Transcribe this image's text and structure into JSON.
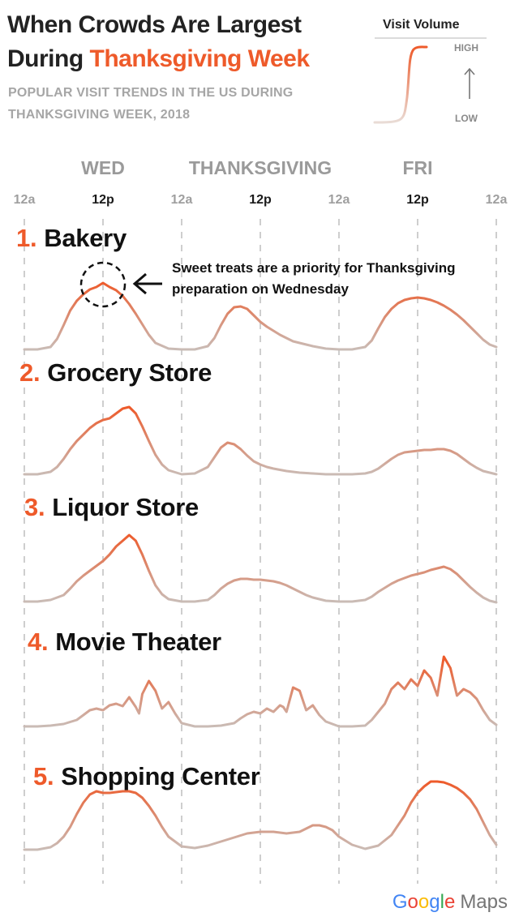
{
  "header": {
    "title_line1": "When Crowds Are Largest",
    "title_line2_prefix": "During ",
    "title_line2_highlight": "Thanksgiving Week",
    "subtitle": "POPULAR VISIT TRENDS IN THE US DURING THANKSGIVING WEEK, 2018"
  },
  "legend": {
    "title": "Visit Volume",
    "high": "HIGH",
    "low": "LOW"
  },
  "annotation": {
    "text": "Sweet treats are a priority for Thanksgiving preparation on Wednesday"
  },
  "footer": {
    "google": [
      "G",
      "o",
      "o",
      "g",
      "l",
      "e"
    ],
    "google_colors": [
      "#4285F4",
      "#EA4335",
      "#FBBC05",
      "#4285F4",
      "#34A853",
      "#EA4335"
    ],
    "maps": "Maps"
  },
  "colors": {
    "accent": "#ee5a2a",
    "low": "#c8c0bc",
    "grid": "#bdbdbd"
  },
  "chart_data": {
    "type": "line",
    "title": "When Crowds Are Largest During Thanksgiving Week",
    "subtitle": "POPULAR VISIT TRENDS IN THE US DURING THANKSGIVING WEEK, 2018",
    "days": [
      "WED",
      "THANKSGIVING",
      "FRI"
    ],
    "tick_labels": [
      "12a",
      "12p",
      "12a",
      "12p",
      "12a",
      "12p",
      "12a"
    ],
    "x_unit_hours": [
      0,
      12,
      24,
      36,
      48,
      60,
      72
    ],
    "ylim": [
      0,
      1
    ],
    "grid": "vertical dashed lines at ticks",
    "legend": "top-right",
    "panels": [
      {
        "rank": "1.",
        "name": "Bakery",
        "highlight_hour": 12,
        "x": [
          0,
          2,
          4,
          5,
          6,
          7,
          8,
          9,
          10,
          11,
          12,
          13,
          14,
          15,
          16,
          17,
          18,
          19,
          20,
          22,
          24,
          26,
          28,
          29,
          30,
          31,
          32,
          33,
          34,
          35,
          36,
          37,
          38,
          39,
          40,
          41,
          42,
          43,
          44,
          46,
          48,
          50,
          52,
          53,
          54,
          55,
          56,
          57,
          58,
          59,
          60,
          61,
          62,
          63,
          64,
          65,
          66,
          67,
          68,
          69,
          70,
          71,
          72
        ],
        "y": [
          0.02,
          0.02,
          0.05,
          0.15,
          0.32,
          0.5,
          0.62,
          0.7,
          0.76,
          0.79,
          0.84,
          0.79,
          0.75,
          0.68,
          0.58,
          0.46,
          0.33,
          0.2,
          0.1,
          0.03,
          0.02,
          0.02,
          0.06,
          0.16,
          0.32,
          0.46,
          0.54,
          0.55,
          0.52,
          0.44,
          0.36,
          0.3,
          0.25,
          0.2,
          0.16,
          0.12,
          0.1,
          0.08,
          0.06,
          0.03,
          0.02,
          0.02,
          0.05,
          0.13,
          0.28,
          0.42,
          0.52,
          0.59,
          0.63,
          0.65,
          0.66,
          0.65,
          0.63,
          0.6,
          0.56,
          0.51,
          0.45,
          0.38,
          0.3,
          0.22,
          0.14,
          0.08,
          0.05
        ]
      },
      {
        "rank": "2.",
        "name": "Grocery Store",
        "x": [
          0,
          2,
          4,
          5,
          6,
          7,
          8,
          9,
          10,
          11,
          12,
          13,
          14,
          15,
          16,
          17,
          18,
          19,
          20,
          21,
          22,
          24,
          26,
          28,
          29,
          30,
          31,
          32,
          33,
          34,
          35,
          36,
          37,
          38,
          40,
          42,
          44,
          46,
          48,
          50,
          52,
          53,
          54,
          55,
          56,
          57,
          58,
          59,
          60,
          61,
          62,
          63,
          64,
          65,
          66,
          67,
          68,
          69,
          70,
          71,
          72
        ],
        "y": [
          0.03,
          0.03,
          0.06,
          0.12,
          0.22,
          0.34,
          0.44,
          0.52,
          0.6,
          0.66,
          0.7,
          0.72,
          0.78,
          0.84,
          0.86,
          0.78,
          0.62,
          0.44,
          0.27,
          0.15,
          0.08,
          0.03,
          0.04,
          0.12,
          0.24,
          0.36,
          0.42,
          0.4,
          0.34,
          0.26,
          0.19,
          0.15,
          0.12,
          0.1,
          0.07,
          0.05,
          0.04,
          0.03,
          0.03,
          0.03,
          0.04,
          0.06,
          0.1,
          0.16,
          0.22,
          0.27,
          0.3,
          0.31,
          0.32,
          0.33,
          0.33,
          0.34,
          0.34,
          0.32,
          0.28,
          0.22,
          0.16,
          0.11,
          0.07,
          0.05,
          0.03
        ]
      },
      {
        "rank": "3.",
        "name": "Liquor Store",
        "x": [
          0,
          2,
          4,
          6,
          7,
          8,
          9,
          10,
          11,
          12,
          13,
          14,
          15,
          16,
          17,
          18,
          19,
          20,
          21,
          22,
          24,
          26,
          28,
          29,
          30,
          31,
          32,
          33,
          34,
          35,
          36,
          37,
          38,
          39,
          40,
          41,
          42,
          43,
          44,
          46,
          48,
          50,
          52,
          53,
          54,
          55,
          56,
          57,
          58,
          59,
          60,
          61,
          62,
          63,
          64,
          65,
          66,
          67,
          68,
          69,
          70,
          71,
          72
        ],
        "y": [
          0.02,
          0.02,
          0.04,
          0.1,
          0.18,
          0.27,
          0.34,
          0.4,
          0.46,
          0.52,
          0.6,
          0.7,
          0.77,
          0.84,
          0.77,
          0.6,
          0.4,
          0.22,
          0.11,
          0.05,
          0.02,
          0.02,
          0.04,
          0.1,
          0.18,
          0.24,
          0.28,
          0.3,
          0.3,
          0.29,
          0.29,
          0.28,
          0.27,
          0.25,
          0.22,
          0.18,
          0.14,
          0.1,
          0.07,
          0.03,
          0.02,
          0.02,
          0.04,
          0.08,
          0.14,
          0.19,
          0.24,
          0.28,
          0.31,
          0.34,
          0.36,
          0.38,
          0.41,
          0.43,
          0.45,
          0.42,
          0.36,
          0.28,
          0.2,
          0.13,
          0.07,
          0.03,
          0.01
        ]
      },
      {
        "rank": "4.",
        "name": "Movie Theater",
        "x": [
          0,
          2,
          4,
          6,
          8,
          9,
          10,
          11,
          12,
          13,
          14,
          15,
          16,
          17,
          17.5,
          18,
          19,
          20,
          21,
          22,
          23,
          24,
          26,
          28,
          30,
          32,
          33,
          34,
          35,
          36,
          37,
          38,
          39,
          39.5,
          40,
          41,
          42,
          43,
          44,
          45,
          46,
          48,
          50,
          52,
          53,
          54,
          55,
          56,
          57,
          58,
          59,
          60,
          61,
          62,
          63,
          64,
          65,
          66,
          67,
          68,
          69,
          70,
          71,
          72
        ],
        "y": [
          0.02,
          0.02,
          0.03,
          0.05,
          0.1,
          0.16,
          0.22,
          0.24,
          0.22,
          0.28,
          0.3,
          0.27,
          0.38,
          0.26,
          0.18,
          0.42,
          0.58,
          0.46,
          0.24,
          0.32,
          0.18,
          0.06,
          0.02,
          0.02,
          0.03,
          0.06,
          0.12,
          0.17,
          0.2,
          0.18,
          0.24,
          0.2,
          0.28,
          0.26,
          0.2,
          0.5,
          0.46,
          0.22,
          0.28,
          0.16,
          0.08,
          0.02,
          0.02,
          0.03,
          0.1,
          0.2,
          0.3,
          0.48,
          0.56,
          0.48,
          0.6,
          0.52,
          0.71,
          0.62,
          0.4,
          0.88,
          0.74,
          0.4,
          0.48,
          0.44,
          0.36,
          0.22,
          0.1,
          0.04
        ]
      },
      {
        "rank": "5.",
        "name": "Shopping Center",
        "x": [
          0,
          2,
          4,
          5,
          6,
          7,
          8,
          9,
          10,
          11,
          12,
          13,
          14,
          15,
          16,
          17,
          18,
          19,
          20,
          21,
          22,
          24,
          26,
          28,
          30,
          32,
          34,
          36,
          38,
          40,
          42,
          43,
          44,
          45,
          46,
          47,
          48,
          50,
          52,
          54,
          56,
          58,
          59,
          60,
          61,
          62,
          63,
          64,
          65,
          66,
          67,
          68,
          69,
          70,
          71,
          72
        ],
        "y": [
          0.02,
          0.02,
          0.05,
          0.1,
          0.18,
          0.3,
          0.46,
          0.6,
          0.7,
          0.74,
          0.72,
          0.72,
          0.73,
          0.74,
          0.74,
          0.72,
          0.66,
          0.56,
          0.44,
          0.3,
          0.18,
          0.06,
          0.04,
          0.07,
          0.12,
          0.17,
          0.22,
          0.24,
          0.24,
          0.22,
          0.24,
          0.28,
          0.32,
          0.32,
          0.3,
          0.26,
          0.18,
          0.08,
          0.03,
          0.07,
          0.2,
          0.44,
          0.6,
          0.72,
          0.8,
          0.86,
          0.86,
          0.85,
          0.82,
          0.78,
          0.72,
          0.64,
          0.52,
          0.36,
          0.2,
          0.08
        ]
      }
    ]
  }
}
